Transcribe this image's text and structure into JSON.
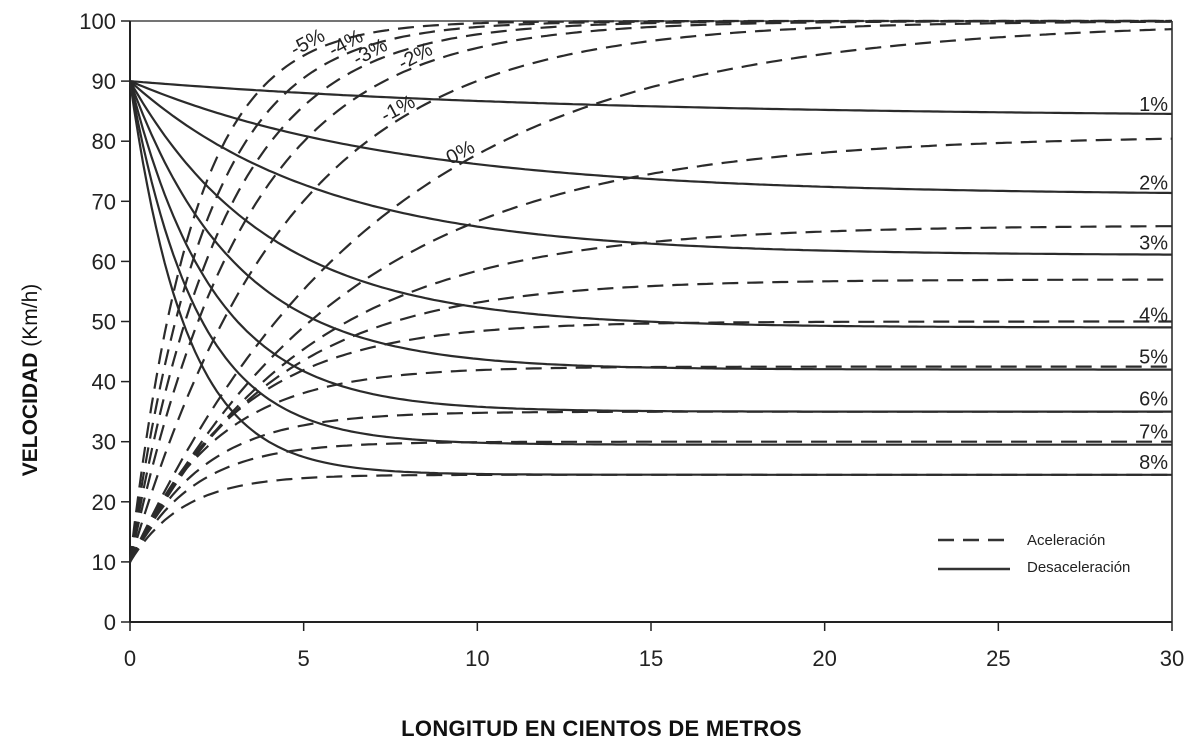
{
  "chart_data": {
    "type": "line",
    "xlabel": "LONGITUD EN CIENTOS DE METROS",
    "ylabel": {
      "bold": "VELOCIDAD",
      "regular": "(Km/h)"
    },
    "xlim": [
      0,
      30
    ],
    "ylim": [
      0,
      100
    ],
    "x_ticks": [
      0,
      5,
      10,
      15,
      20,
      25,
      30
    ],
    "y_ticks": [
      0,
      10,
      20,
      30,
      40,
      50,
      60,
      70,
      80,
      90,
      100
    ],
    "legend": {
      "position": "bottom-right",
      "accel_label": "Aceleración",
      "decel_label": "Desaceleración"
    },
    "acceleration_series": [
      {
        "label": "-5%",
        "start": 10,
        "final": 100,
        "k": 0.55
      },
      {
        "label": "-4%",
        "start": 10,
        "final": 100,
        "k": 0.45
      },
      {
        "label": "-3%",
        "start": 10,
        "final": 100,
        "k": 0.37
      },
      {
        "label": "-2%",
        "start": 10,
        "final": 100,
        "k": 0.3
      },
      {
        "label": "-1%",
        "start": 10,
        "final": 100,
        "k": 0.22
      },
      {
        "label": "0%",
        "start": 10,
        "final": 100,
        "k": 0.14
      },
      {
        "label": "1%",
        "start": 10,
        "final": 81,
        "k": 0.16
      },
      {
        "label": "2%",
        "start": 10,
        "final": 66,
        "k": 0.2
      },
      {
        "label": "3%",
        "start": 10,
        "final": 57,
        "k": 0.25
      },
      {
        "label": "4%",
        "start": 10,
        "final": 50,
        "k": 0.32
      },
      {
        "label": "5%",
        "start": 10,
        "final": 42.5,
        "k": 0.4
      },
      {
        "label": "6%",
        "start": 10,
        "final": 35,
        "k": 0.48
      },
      {
        "label": "7%",
        "start": 10,
        "final": 30,
        "k": 0.55
      },
      {
        "label": "8%",
        "start": 10,
        "final": 24.5,
        "k": 0.65
      }
    ],
    "deceleration_series": [
      {
        "label": "1%",
        "start": 90,
        "final": 84,
        "k": 0.08
      },
      {
        "label": "2%",
        "start": 90,
        "final": 71,
        "k": 0.13
      },
      {
        "label": "3%",
        "start": 90,
        "final": 61,
        "k": 0.18
      },
      {
        "label": "4%",
        "start": 90,
        "final": 49,
        "k": 0.25
      },
      {
        "label": "5%",
        "start": 90,
        "final": 42,
        "k": 0.33
      },
      {
        "label": "6%",
        "start": 90,
        "final": 35,
        "k": 0.42
      },
      {
        "label": "7%",
        "start": 90,
        "final": 29.5,
        "k": 0.52
      },
      {
        "label": "8%",
        "start": 90,
        "final": 24.5,
        "k": 0.62
      }
    ],
    "right_grade_labels": [
      "1%",
      "2%",
      "3%",
      "4%",
      "5%",
      "6%",
      "7%",
      "8%"
    ],
    "curve_labels": [
      "-5%",
      "-4%",
      "-3%",
      "-2%",
      "-1%",
      "0%"
    ]
  }
}
